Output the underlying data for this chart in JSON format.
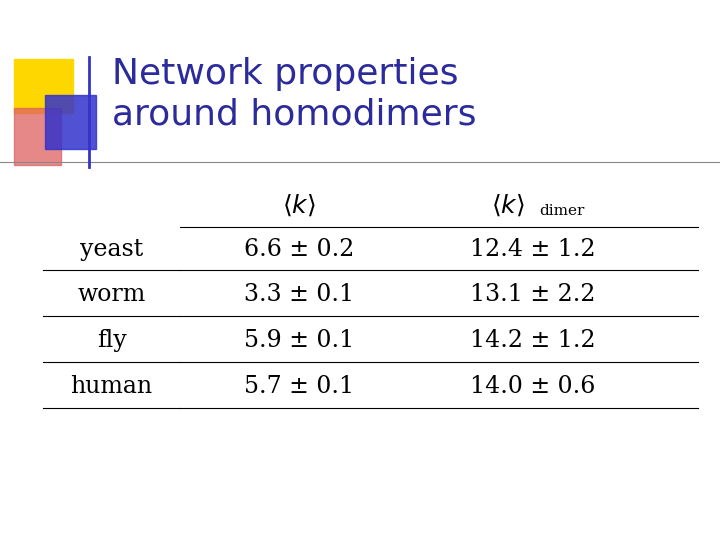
{
  "title_line1": "Network properties",
  "title_line2": "around homodimers",
  "title_color": "#2b2b9b",
  "title_fontsize": 26,
  "rows": [
    {
      "label": "yeast",
      "val1": "6.6 ± 0.2",
      "val2": "12.4 ± 1.2"
    },
    {
      "label": "worm",
      "val1": "3.3 ± 0.1",
      "val2": "13.1 ± 2.2"
    },
    {
      "label": "fly",
      "val1": "5.9 ± 0.1",
      "val2": "14.2 ± 1.2"
    },
    {
      "label": "human",
      "val1": "5.7 ± 0.1",
      "val2": "14.0 ± 0.6"
    }
  ],
  "bg_color": "#ffffff",
  "text_color": "#000000",
  "table_fontsize": 17,
  "header_fontsize": 18,
  "yellow_color": "#FFD700",
  "red_color": "#E06060",
  "blue_color": "#3333CC",
  "deco_line_color": "#888888"
}
